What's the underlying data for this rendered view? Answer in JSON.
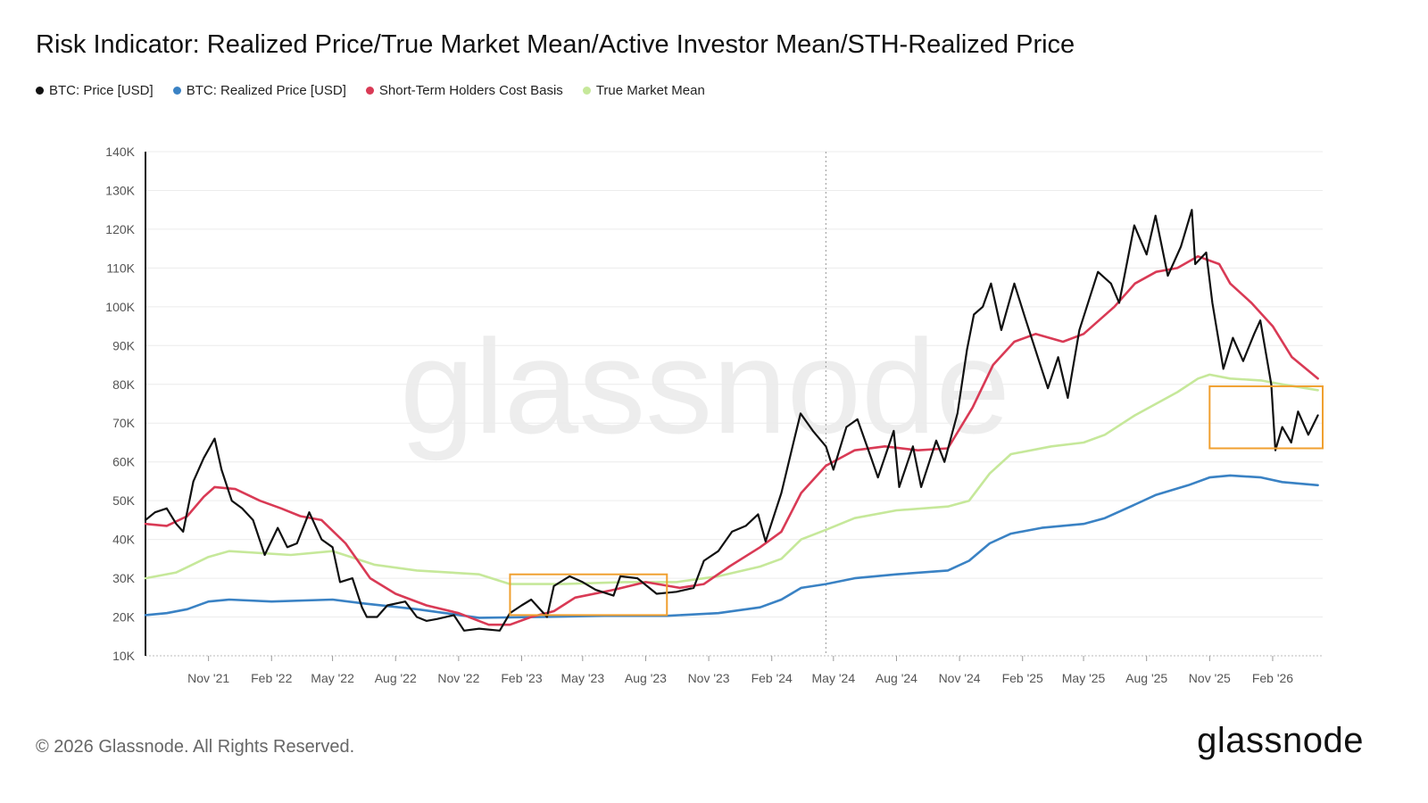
{
  "header": {
    "title": "Risk Indicator: Realized Price/True Market Mean/Active Investor Mean/STH-Realized Price"
  },
  "legend": [
    {
      "label": "BTC: Price [USD]",
      "color": "#111111"
    },
    {
      "label": "BTC: Realized Price [USD]",
      "color": "#3a82c4"
    },
    {
      "label": "Short-Term Holders Cost Basis",
      "color": "#d93a55"
    },
    {
      "label": "True Market Mean",
      "color": "#c6e89a"
    }
  ],
  "footer": {
    "copyright": "© 2026 Glassnode. All Rights Reserved.",
    "logo_text": "glassnode",
    "watermark": "glassnode"
  },
  "chart_data": {
    "type": "line",
    "x_ticks": [
      "Nov '21",
      "Feb '22",
      "May '22",
      "Aug '22",
      "Nov '22",
      "Feb '23",
      "May '23",
      "Aug '23",
      "Nov '23",
      "Feb '24",
      "May '24",
      "Aug '24",
      "Nov '24",
      "Feb '25",
      "May '25",
      "Aug '25",
      "Nov '25",
      "Feb '26"
    ],
    "y_ticks": [
      "10K",
      "20K",
      "30K",
      "40K",
      "50K",
      "60K",
      "70K",
      "80K",
      "90K",
      "100K",
      "110K",
      "120K",
      "130K",
      "140K"
    ],
    "ylim": [
      10000,
      140000
    ],
    "xlim": [
      "2021-08-01",
      "2026-04-15"
    ],
    "grid": "horizontal",
    "legend_position": "top-left",
    "marker_line_date": "2024-04-20",
    "series": [
      {
        "name": "BTC: Price [USD]",
        "color": "#111111",
        "points": [
          [
            "2021-08-01",
            45000
          ],
          [
            "2021-08-15",
            47000
          ],
          [
            "2021-09-01",
            48000
          ],
          [
            "2021-09-15",
            44000
          ],
          [
            "2021-09-25",
            42000
          ],
          [
            "2021-10-10",
            55000
          ],
          [
            "2021-10-25",
            61000
          ],
          [
            "2021-11-10",
            66000
          ],
          [
            "2021-11-20",
            58000
          ],
          [
            "2021-12-05",
            50000
          ],
          [
            "2021-12-20",
            48000
          ],
          [
            "2022-01-05",
            45000
          ],
          [
            "2022-01-22",
            36000
          ],
          [
            "2022-02-10",
            43000
          ],
          [
            "2022-02-24",
            38000
          ],
          [
            "2022-03-10",
            39000
          ],
          [
            "2022-03-28",
            47000
          ],
          [
            "2022-04-15",
            40000
          ],
          [
            "2022-05-01",
            38000
          ],
          [
            "2022-05-12",
            29000
          ],
          [
            "2022-05-30",
            30000
          ],
          [
            "2022-06-13",
            22500
          ],
          [
            "2022-06-20",
            20000
          ],
          [
            "2022-07-05",
            20000
          ],
          [
            "2022-07-20",
            23000
          ],
          [
            "2022-08-15",
            24000
          ],
          [
            "2022-09-01",
            20000
          ],
          [
            "2022-09-15",
            19000
          ],
          [
            "2022-10-01",
            19500
          ],
          [
            "2022-10-25",
            20500
          ],
          [
            "2022-11-09",
            16500
          ],
          [
            "2022-12-01",
            17000
          ],
          [
            "2022-12-31",
            16500
          ],
          [
            "2023-01-15",
            21000
          ],
          [
            "2023-02-01",
            23000
          ],
          [
            "2023-02-15",
            24500
          ],
          [
            "2023-03-10",
            20000
          ],
          [
            "2023-03-20",
            28000
          ],
          [
            "2023-04-12",
            30500
          ],
          [
            "2023-05-01",
            29000
          ],
          [
            "2023-05-20",
            27000
          ],
          [
            "2023-06-15",
            25500
          ],
          [
            "2023-06-25",
            30500
          ],
          [
            "2023-07-20",
            30000
          ],
          [
            "2023-08-17",
            26000
          ],
          [
            "2023-09-15",
            26500
          ],
          [
            "2023-10-10",
            27500
          ],
          [
            "2023-10-25",
            34500
          ],
          [
            "2023-11-15",
            37000
          ],
          [
            "2023-12-05",
            42000
          ],
          [
            "2023-12-25",
            43500
          ],
          [
            "2024-01-12",
            46500
          ],
          [
            "2024-01-23",
            39500
          ],
          [
            "2024-02-15",
            52000
          ],
          [
            "2024-03-05",
            66000
          ],
          [
            "2024-03-14",
            72500
          ],
          [
            "2024-04-01",
            68000
          ],
          [
            "2024-04-20",
            64000
          ],
          [
            "2024-05-01",
            58000
          ],
          [
            "2024-05-20",
            69000
          ],
          [
            "2024-06-05",
            71000
          ],
          [
            "2024-06-25",
            61000
          ],
          [
            "2024-07-05",
            56000
          ],
          [
            "2024-07-28",
            68000
          ],
          [
            "2024-08-05",
            53500
          ],
          [
            "2024-08-25",
            64000
          ],
          [
            "2024-09-06",
            53500
          ],
          [
            "2024-09-28",
            65500
          ],
          [
            "2024-10-10",
            60000
          ],
          [
            "2024-10-29",
            72500
          ],
          [
            "2024-11-12",
            89000
          ],
          [
            "2024-11-22",
            98000
          ],
          [
            "2024-12-05",
            100000
          ],
          [
            "2024-12-17",
            106000
          ],
          [
            "2025-01-01",
            94000
          ],
          [
            "2025-01-20",
            106000
          ],
          [
            "2025-02-05",
            97000
          ],
          [
            "2025-02-25",
            86000
          ],
          [
            "2025-03-10",
            79000
          ],
          [
            "2025-03-25",
            87000
          ],
          [
            "2025-04-08",
            76500
          ],
          [
            "2025-04-25",
            94000
          ],
          [
            "2025-05-22",
            109000
          ],
          [
            "2025-06-10",
            106000
          ],
          [
            "2025-06-22",
            101000
          ],
          [
            "2025-07-14",
            121000
          ],
          [
            "2025-08-01",
            113500
          ],
          [
            "2025-08-14",
            123500
          ],
          [
            "2025-09-01",
            108000
          ],
          [
            "2025-09-20",
            115500
          ],
          [
            "2025-10-06",
            125000
          ],
          [
            "2025-10-11",
            111000
          ],
          [
            "2025-10-27",
            114000
          ],
          [
            "2025-11-05",
            101000
          ],
          [
            "2025-11-21",
            84000
          ],
          [
            "2025-12-05",
            92000
          ],
          [
            "2025-12-20",
            86000
          ],
          [
            "2026-01-05",
            93000
          ],
          [
            "2026-01-14",
            96500
          ],
          [
            "2026-01-30",
            80000
          ],
          [
            "2026-02-05",
            63000
          ],
          [
            "2026-02-15",
            69000
          ],
          [
            "2026-02-28",
            65000
          ],
          [
            "2026-03-10",
            73000
          ],
          [
            "2026-03-25",
            67000
          ],
          [
            "2026-04-08",
            72000
          ]
        ]
      },
      {
        "name": "BTC: Realized Price [USD]",
        "color": "#3a82c4",
        "points": [
          [
            "2021-08-01",
            20500
          ],
          [
            "2021-09-01",
            21000
          ],
          [
            "2021-10-01",
            22000
          ],
          [
            "2021-11-01",
            24000
          ],
          [
            "2021-12-01",
            24500
          ],
          [
            "2022-02-01",
            24000
          ],
          [
            "2022-05-01",
            24500
          ],
          [
            "2022-06-15",
            23500
          ],
          [
            "2022-09-01",
            22000
          ],
          [
            "2022-12-01",
            19800
          ],
          [
            "2023-03-01",
            20000
          ],
          [
            "2023-06-01",
            20300
          ],
          [
            "2023-09-01",
            20300
          ],
          [
            "2023-11-15",
            21000
          ],
          [
            "2024-01-15",
            22500
          ],
          [
            "2024-02-15",
            24500
          ],
          [
            "2024-03-15",
            27500
          ],
          [
            "2024-04-20",
            28500
          ],
          [
            "2024-06-01",
            30000
          ],
          [
            "2024-08-01",
            31000
          ],
          [
            "2024-10-15",
            32000
          ],
          [
            "2024-11-15",
            34500
          ],
          [
            "2024-12-15",
            39000
          ],
          [
            "2025-01-15",
            41500
          ],
          [
            "2025-03-01",
            43000
          ],
          [
            "2025-05-01",
            44000
          ],
          [
            "2025-06-01",
            45500
          ],
          [
            "2025-07-15",
            49000
          ],
          [
            "2025-08-15",
            51500
          ],
          [
            "2025-10-01",
            54000
          ],
          [
            "2025-11-01",
            56000
          ],
          [
            "2025-12-01",
            56500
          ],
          [
            "2026-01-15",
            56000
          ],
          [
            "2026-02-15",
            54800
          ],
          [
            "2026-04-08",
            54000
          ]
        ]
      },
      {
        "name": "Short-Term Holders Cost Basis",
        "color": "#d93a55",
        "points": [
          [
            "2021-08-01",
            44000
          ],
          [
            "2021-09-01",
            43500
          ],
          [
            "2021-10-01",
            46000
          ],
          [
            "2021-10-25",
            51000
          ],
          [
            "2021-11-10",
            53500
          ],
          [
            "2021-12-10",
            53000
          ],
          [
            "2022-01-15",
            50000
          ],
          [
            "2022-02-15",
            48000
          ],
          [
            "2022-03-15",
            46000
          ],
          [
            "2022-04-15",
            45000
          ],
          [
            "2022-05-20",
            39000
          ],
          [
            "2022-06-25",
            30000
          ],
          [
            "2022-08-01",
            26000
          ],
          [
            "2022-09-15",
            23000
          ],
          [
            "2022-11-01",
            21000
          ],
          [
            "2022-12-15",
            18000
          ],
          [
            "2023-01-15",
            18000
          ],
          [
            "2023-02-15",
            20000
          ],
          [
            "2023-03-20",
            21500
          ],
          [
            "2023-04-20",
            25000
          ],
          [
            "2023-06-15",
            27000
          ],
          [
            "2023-08-01",
            29000
          ],
          [
            "2023-09-20",
            27500
          ],
          [
            "2023-10-25",
            28500
          ],
          [
            "2023-12-01",
            33000
          ],
          [
            "2024-01-15",
            38000
          ],
          [
            "2024-02-15",
            42000
          ],
          [
            "2024-03-15",
            52000
          ],
          [
            "2024-04-20",
            59000
          ],
          [
            "2024-06-01",
            63000
          ],
          [
            "2024-07-15",
            64000
          ],
          [
            "2024-09-01",
            63000
          ],
          [
            "2024-10-15",
            63500
          ],
          [
            "2024-11-20",
            74000
          ],
          [
            "2024-12-20",
            85000
          ],
          [
            "2025-01-20",
            91000
          ],
          [
            "2025-02-20",
            93000
          ],
          [
            "2025-04-01",
            91000
          ],
          [
            "2025-05-01",
            93000
          ],
          [
            "2025-06-15",
            100000
          ],
          [
            "2025-07-15",
            106000
          ],
          [
            "2025-08-15",
            109000
          ],
          [
            "2025-09-15",
            110000
          ],
          [
            "2025-10-15",
            113000
          ],
          [
            "2025-11-15",
            111000
          ],
          [
            "2025-12-01",
            106000
          ],
          [
            "2026-01-01",
            101000
          ],
          [
            "2026-02-01",
            95000
          ],
          [
            "2026-03-01",
            87000
          ],
          [
            "2026-04-08",
            81500
          ]
        ]
      },
      {
        "name": "True Market Mean",
        "color": "#c6e89a",
        "points": [
          [
            "2021-08-01",
            30000
          ],
          [
            "2021-09-15",
            31500
          ],
          [
            "2021-11-01",
            35500
          ],
          [
            "2021-12-01",
            37000
          ],
          [
            "2022-03-01",
            36000
          ],
          [
            "2022-05-01",
            37000
          ],
          [
            "2022-07-01",
            33500
          ],
          [
            "2022-09-01",
            32000
          ],
          [
            "2022-12-01",
            31000
          ],
          [
            "2023-01-15",
            28500
          ],
          [
            "2023-04-01",
            28500
          ],
          [
            "2023-07-01",
            29000
          ],
          [
            "2023-09-15",
            29000
          ],
          [
            "2023-11-15",
            30500
          ],
          [
            "2024-01-15",
            33000
          ],
          [
            "2024-02-15",
            35000
          ],
          [
            "2024-03-15",
            40000
          ],
          [
            "2024-04-20",
            42500
          ],
          [
            "2024-06-01",
            45500
          ],
          [
            "2024-08-01",
            47500
          ],
          [
            "2024-10-15",
            48500
          ],
          [
            "2024-11-15",
            50000
          ],
          [
            "2024-12-15",
            57000
          ],
          [
            "2025-01-15",
            62000
          ],
          [
            "2025-03-15",
            64000
          ],
          [
            "2025-05-01",
            65000
          ],
          [
            "2025-06-01",
            67000
          ],
          [
            "2025-07-15",
            72000
          ],
          [
            "2025-08-15",
            75000
          ],
          [
            "2025-09-15",
            78000
          ],
          [
            "2025-10-15",
            81500
          ],
          [
            "2025-11-01",
            82500
          ],
          [
            "2025-12-01",
            81500
          ],
          [
            "2026-01-15",
            81000
          ],
          [
            "2026-02-15",
            80000
          ],
          [
            "2026-04-08",
            78500
          ]
        ]
      }
    ],
    "highlights": [
      {
        "start": "2023-01-15",
        "end": "2023-09-01",
        "y0": 20500,
        "y1": 31000,
        "color": "#f0a030"
      },
      {
        "start": "2025-11-01",
        "end": "2026-04-15",
        "y0": 63500,
        "y1": 79500,
        "color": "#f0a030"
      }
    ]
  }
}
